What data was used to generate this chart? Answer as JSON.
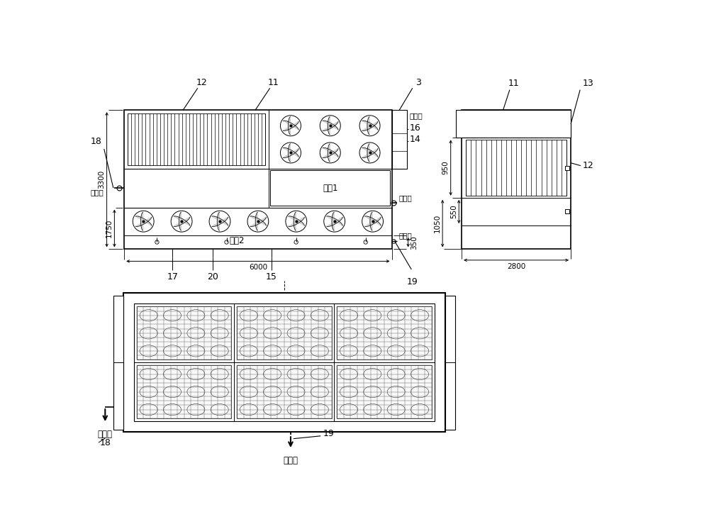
{
  "bg_color": "#ffffff",
  "lc": "#000000",
  "labels": {
    "3": "3",
    "11": "11",
    "12": "12",
    "13": "13",
    "14": "14",
    "15": "15",
    "16": "16",
    "17": "17",
    "18": "18",
    "19": "19",
    "20": "20",
    "jinfengguan": "进风管",
    "shuijinkou": "水进口",
    "shuichukou": "水出口",
    "paiwukou": "排污口",
    "shuichi1": "水池1",
    "shuichi2": "水池2"
  },
  "dim_3300": "3300",
  "dim_1750": "1750",
  "dim_6000": "6000",
  "dim_350": "350",
  "dim_950": "950",
  "dim_1050": "1050",
  "dim_550": "550",
  "dim_2800": "2800"
}
